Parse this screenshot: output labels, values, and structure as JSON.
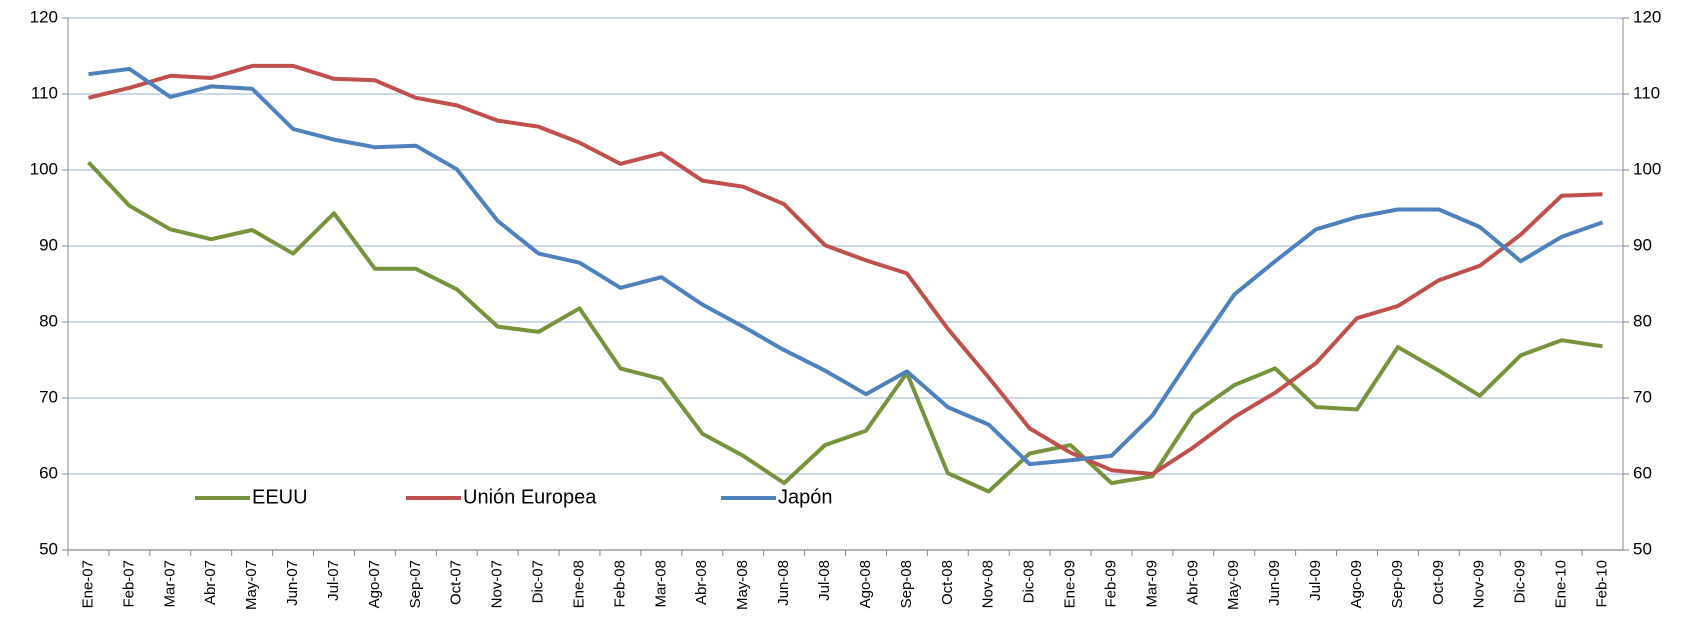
{
  "chart_data": {
    "type": "line",
    "categories": [
      "Ene-07",
      "Feb-07",
      "Mar-07",
      "Abr-07",
      "May-07",
      "Jun-07",
      "Jul-07",
      "Ago-07",
      "Sep-07",
      "Oct-07",
      "Nov-07",
      "Dic-07",
      "Ene-08",
      "Feb-08",
      "Mar-08",
      "Abr-08",
      "May-08",
      "Jun-08",
      "Jul-08",
      "Ago-08",
      "Sep-08",
      "Oct-08",
      "Nov-08",
      "Dic-08",
      "Ene-09",
      "Feb-09",
      "Mar-09",
      "Abr-09",
      "May-09",
      "Jun-09",
      "Jul-09",
      "Ago-09",
      "Sep-09",
      "Oct-09",
      "Nov-09",
      "Dic-09",
      "Ene-10",
      "Feb-10"
    ],
    "series": [
      {
        "name": "EEUU",
        "color": "#77933c",
        "values": [
          101,
          95.3,
          92.2,
          90.9,
          92.1,
          89,
          94.3,
          87,
          87,
          84.3,
          79.4,
          78.7,
          81.8,
          73.9,
          72.5,
          65.3,
          62.4,
          58.8,
          63.8,
          65.7,
          73.3,
          60.1,
          57.7,
          62.7,
          63.8,
          58.8,
          59.7,
          67.9,
          71.7,
          73.9,
          68.8,
          68.5,
          76.7,
          73.6,
          70.3,
          75.6,
          77.6,
          76.8
        ]
      },
      {
        "name": "Unión Europea",
        "color": "#c0504d",
        "values": [
          109.5,
          110.8,
          112.4,
          112.1,
          113.7,
          113.7,
          112,
          111.8,
          109.5,
          108.5,
          106.5,
          105.7,
          103.6,
          100.8,
          102.2,
          98.6,
          97.8,
          95.5,
          90.1,
          88.1,
          86.4,
          79.1,
          72.7,
          66,
          62.8,
          60.5,
          60,
          63.5,
          67.5,
          70.7,
          74.6,
          80.5,
          82.1,
          85.5,
          87.4,
          91.5,
          96.6,
          96.8
        ]
      },
      {
        "name": "Japón",
        "color": "#4f81bd",
        "values": [
          112.6,
          113.3,
          109.6,
          111,
          110.7,
          105.4,
          104,
          103,
          103.2,
          100.1,
          93.3,
          89,
          87.8,
          84.5,
          85.9,
          82.3,
          79.4,
          76.3,
          73.6,
          70.5,
          73.5,
          68.8,
          66.5,
          61.3,
          61.8,
          62.4,
          67.7,
          75.8,
          83.6,
          88,
          92.2,
          93.8,
          94.8,
          94.8,
          92.5,
          88,
          91.2,
          93.1
        ]
      }
    ],
    "ylim": [
      50,
      120
    ],
    "yticks": [
      50,
      60,
      70,
      80,
      90,
      100,
      110,
      120
    ],
    "y2lim": [
      50,
      120
    ],
    "y2ticks": [
      50,
      60,
      70,
      80,
      90,
      100,
      110,
      120
    ],
    "grid": true,
    "legend": "lower left"
  }
}
